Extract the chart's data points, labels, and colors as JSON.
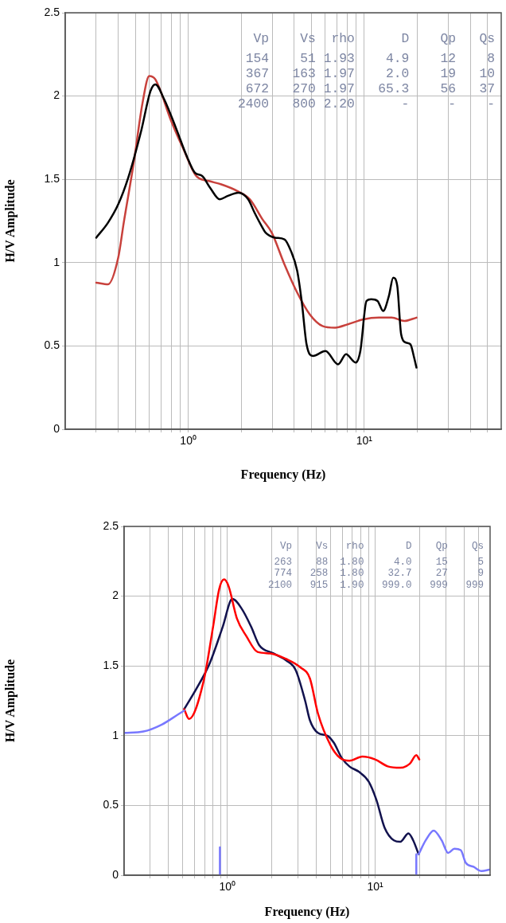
{
  "chart_data": [
    {
      "type": "line",
      "xlabel": "Frequency (Hz)",
      "ylabel": "H/V Amplitude",
      "log": "x",
      "grid": true,
      "marker": "none",
      "xlim": [
        0.2,
        60
      ],
      "ylim": [
        0,
        2.5
      ],
      "xticks": [
        {
          "value": 0.3,
          "label": null
        },
        {
          "value": 0.4,
          "label": null
        },
        {
          "value": 0.5,
          "label": null
        },
        {
          "value": 0.6,
          "label": null
        },
        {
          "value": 0.7,
          "label": null
        },
        {
          "value": 0.8,
          "label": null
        },
        {
          "value": 0.9,
          "label": null
        },
        {
          "value": 1,
          "label": "10⁰"
        },
        {
          "value": 2,
          "label": null
        },
        {
          "value": 3,
          "label": null
        },
        {
          "value": 4,
          "label": null
        },
        {
          "value": 5,
          "label": null
        },
        {
          "value": 6,
          "label": null
        },
        {
          "value": 7,
          "label": null
        },
        {
          "value": 8,
          "label": null
        },
        {
          "value": 9,
          "label": null
        },
        {
          "value": 10,
          "label": "10¹"
        },
        {
          "value": 20,
          "label": null
        },
        {
          "value": 30,
          "label": null
        },
        {
          "value": 40,
          "label": null
        },
        {
          "value": 50,
          "label": null
        }
      ],
      "yticks": [
        0,
        0.5,
        1,
        1.5,
        2,
        2.5
      ],
      "annotations": [
        "  Vp    Vs  rho      D    Qp   Qs",
        " 154    51 1.93    4.9    12    8",
        " 367   163 1.97    2.0    19   10",
        " 672   270 1.97   65.3    56   37",
        "2400   800 2.20      -     -    -"
      ],
      "series": [
        {
          "color": "#000000",
          "x": [
            0.3,
            0.35,
            0.4,
            0.456,
            0.54,
            0.61,
            0.65,
            0.73,
            0.85,
            0.98,
            1.09,
            1.2,
            1.33,
            1.51,
            1.67,
            1.93,
            2.19,
            2.38,
            2.64,
            2.75,
            3.11,
            3.52,
            3.83,
            4.16,
            4.42,
            4.7,
            5.11,
            6.02,
            7.1,
            7.88,
            8.93,
            9.5,
            10.3,
            10.95,
            11.9,
            12.8,
            13.8,
            14.6,
            15.4,
            16.2,
            17.3,
            18.3,
            19.1,
            19.8
          ],
          "values": [
            1.15,
            1.24,
            1.35,
            1.51,
            1.79,
            2.03,
            2.07,
            1.98,
            1.81,
            1.64,
            1.54,
            1.52,
            1.45,
            1.38,
            1.4,
            1.42,
            1.38,
            1.3,
            1.21,
            1.18,
            1.15,
            1.14,
            1.07,
            0.95,
            0.76,
            0.51,
            0.44,
            0.47,
            0.39,
            0.45,
            0.4,
            0.47,
            0.77,
            0.78,
            0.77,
            0.71,
            0.8,
            0.91,
            0.86,
            0.57,
            0.52,
            0.51,
            0.44,
            0.37
          ]
        },
        {
          "color": "#c8413c",
          "x": [
            0.3,
            0.35,
            0.4,
            0.43,
            0.49,
            0.55,
            0.6,
            0.65,
            0.8,
            0.94,
            1.11,
            1.31,
            1.54,
            1.9,
            2.24,
            2.64,
            2.98,
            3.52,
            4.16,
            4.9,
            5.79,
            6.83,
            8.06,
            9.9,
            12.1,
            14.3,
            16.9,
            19.8
          ],
          "values": [
            0.88,
            0.87,
            1.03,
            1.24,
            1.6,
            1.96,
            2.12,
            2.1,
            1.85,
            1.68,
            1.52,
            1.49,
            1.47,
            1.43,
            1.38,
            1.26,
            1.18,
            0.99,
            0.82,
            0.69,
            0.62,
            0.61,
            0.63,
            0.66,
            0.67,
            0.67,
            0.65,
            0.67
          ]
        }
      ]
    },
    {
      "type": "line",
      "xlabel": "Frequency (Hz)",
      "ylabel": "H/V Amplitude",
      "log": "x",
      "grid": true,
      "marker": "none",
      "xlim": [
        0.2,
        60
      ],
      "ylim": [
        0,
        2.5
      ],
      "xticks": [
        {
          "value": 0.3,
          "label": null
        },
        {
          "value": 0.4,
          "label": null
        },
        {
          "value": 0.5,
          "label": null
        },
        {
          "value": 0.6,
          "label": null
        },
        {
          "value": 0.7,
          "label": null
        },
        {
          "value": 0.8,
          "label": null
        },
        {
          "value": 0.9,
          "label": null
        },
        {
          "value": 1,
          "label": "10⁰"
        },
        {
          "value": 2,
          "label": null
        },
        {
          "value": 3,
          "label": null
        },
        {
          "value": 4,
          "label": null
        },
        {
          "value": 5,
          "label": null
        },
        {
          "value": 6,
          "label": null
        },
        {
          "value": 7,
          "label": null
        },
        {
          "value": 8,
          "label": null
        },
        {
          "value": 9,
          "label": null
        },
        {
          "value": 10,
          "label": "10¹"
        },
        {
          "value": 20,
          "label": null
        },
        {
          "value": 30,
          "label": null
        },
        {
          "value": 40,
          "label": null
        },
        {
          "value": 50,
          "label": null
        }
      ],
      "yticks": [
        0,
        0.5,
        1,
        1.5,
        2,
        2.5
      ],
      "annotations": [
        "  Vp    Vs   rho       D    Qp    Qs",
        " 263    88  1.80     4.0    15     5",
        " 774   258  1.80    32.7    27     9",
        "2100   915  1.90   999.0   999   999"
      ],
      "series": [
        {
          "color": "#7878ff",
          "x": [
            0.2,
            0.27,
            0.36,
            0.46,
            0.51
          ],
          "values": [
            1.02,
            1.03,
            1.08,
            1.15,
            1.18
          ]
        },
        {
          "color": "#7878ff",
          "x": [
            19.7,
            22.0,
            24.9,
            28.2,
            31.2,
            34.4,
            38.0,
            41.0,
            46.4,
            52.5,
            59.4
          ],
          "values": [
            0.15,
            0.25,
            0.32,
            0.25,
            0.16,
            0.19,
            0.18,
            0.09,
            0.06,
            0.03,
            0.04
          ]
        },
        {
          "color": "#7878ff",
          "x": [
            0.89,
            0.89
          ],
          "values": [
            0,
            0.2
          ]
        },
        {
          "color": "#7878ff",
          "x": [
            19,
            19
          ],
          "values": [
            0,
            0.15
          ]
        },
        {
          "color": "#ff0000",
          "x": [
            0.51,
            0.55,
            0.69,
            0.8,
            0.88,
            0.95,
            1.02,
            1.16,
            1.35,
            1.6,
            1.95,
            2.5,
            3.12,
            3.62,
            4.1,
            5.0,
            5.8,
            6.7,
            8.2,
            10.0,
            12.2,
            14.8,
            17.2,
            19.0,
            19.9
          ],
          "values": [
            1.19,
            1.12,
            1.39,
            1.78,
            2.05,
            2.12,
            2.07,
            1.84,
            1.71,
            1.6,
            1.59,
            1.55,
            1.49,
            1.41,
            1.16,
            0.93,
            0.84,
            0.82,
            0.85,
            0.83,
            0.78,
            0.77,
            0.8,
            0.86,
            0.83
          ]
        },
        {
          "color": "#12124e",
          "x": [
            0.51,
            0.62,
            0.76,
            0.93,
            1.08,
            1.25,
            1.45,
            1.64,
            2.05,
            2.5,
            2.9,
            3.36,
            3.62,
            4.1,
            4.75,
            5.25,
            5.95,
            6.7,
            7.8,
            9.06,
            10.2,
            11.6,
            13.4,
            14.8,
            16.8,
            18.1,
            19.7
          ],
          "values": [
            1.19,
            1.34,
            1.52,
            1.78,
            1.98,
            1.91,
            1.78,
            1.65,
            1.59,
            1.54,
            1.47,
            1.25,
            1.11,
            1.02,
            1.0,
            0.95,
            0.84,
            0.78,
            0.74,
            0.67,
            0.54,
            0.34,
            0.25,
            0.24,
            0.3,
            0.25,
            0.15
          ]
        }
      ]
    }
  ]
}
